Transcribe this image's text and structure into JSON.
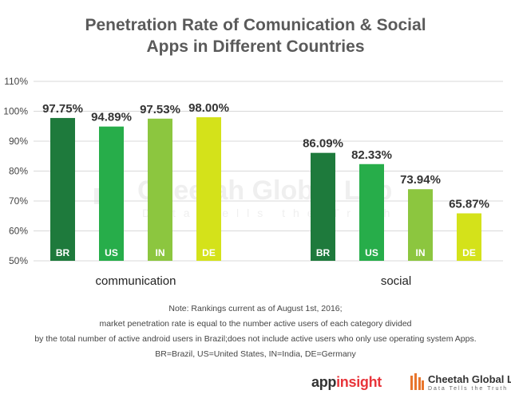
{
  "title_lines": [
    "Penetration Rate of Comunication & Social",
    "Apps in Different Countries"
  ],
  "chart_data": {
    "type": "bar",
    "title": "Penetration Rate of Comunication & Social Apps in Different Countries",
    "ylim": [
      50,
      110
    ],
    "yticks": [
      50,
      60,
      70,
      80,
      90,
      100,
      110
    ],
    "ytick_labels": [
      "50%",
      "60%",
      "70%",
      "80%",
      "90%",
      "100%",
      "110%"
    ],
    "grid": true,
    "groups": [
      {
        "name": "communication",
        "bars": [
          {
            "category": "BR",
            "value": 97.75,
            "label": "97.75%",
            "color": "#1e7a3c"
          },
          {
            "category": "US",
            "value": 94.89,
            "label": "94.89%",
            "color": "#27ad4a"
          },
          {
            "category": "IN",
            "value": 97.53,
            "label": "97.53%",
            "color": "#8cc63f"
          },
          {
            "category": "DE",
            "value": 98.0,
            "label": "98.00%",
            "color": "#d4e21a"
          }
        ]
      },
      {
        "name": "social",
        "bars": [
          {
            "category": "BR",
            "value": 86.09,
            "label": "86.09%",
            "color": "#1e7a3c"
          },
          {
            "category": "US",
            "value": 82.33,
            "label": "82.33%",
            "color": "#27ad4a"
          },
          {
            "category": "IN",
            "value": 73.94,
            "label": "73.94%",
            "color": "#8cc63f"
          },
          {
            "category": "DE",
            "value": 65.87,
            "label": "65.87%",
            "color": "#d4e21a"
          }
        ]
      }
    ]
  },
  "watermark": {
    "name": "Cheetah Global Lab",
    "tagline": "Data Tells the Truth"
  },
  "notes": [
    "Note: Rankings current as of August 1st, 2016;",
    "market penetration rate is equal to the number active users of each category divided",
    "by the total number of active android users in Brazil;does not include active users who only use operating system Apps.",
    "BR=Brazil, US=United States, IN=India, DE=Germany"
  ],
  "logos": {
    "appinsight_a": "app",
    "appinsight_b": "insight",
    "cheetah_name": "Cheetah Global Lab",
    "cheetah_tagline": "Data Tells the Truth"
  },
  "colors": {
    "text_dark": "#333333",
    "title": "#5a5a5a",
    "grid": "#d9d9d9",
    "accent_red": "#e8343a",
    "cheetah_mark": "#e8762d"
  }
}
